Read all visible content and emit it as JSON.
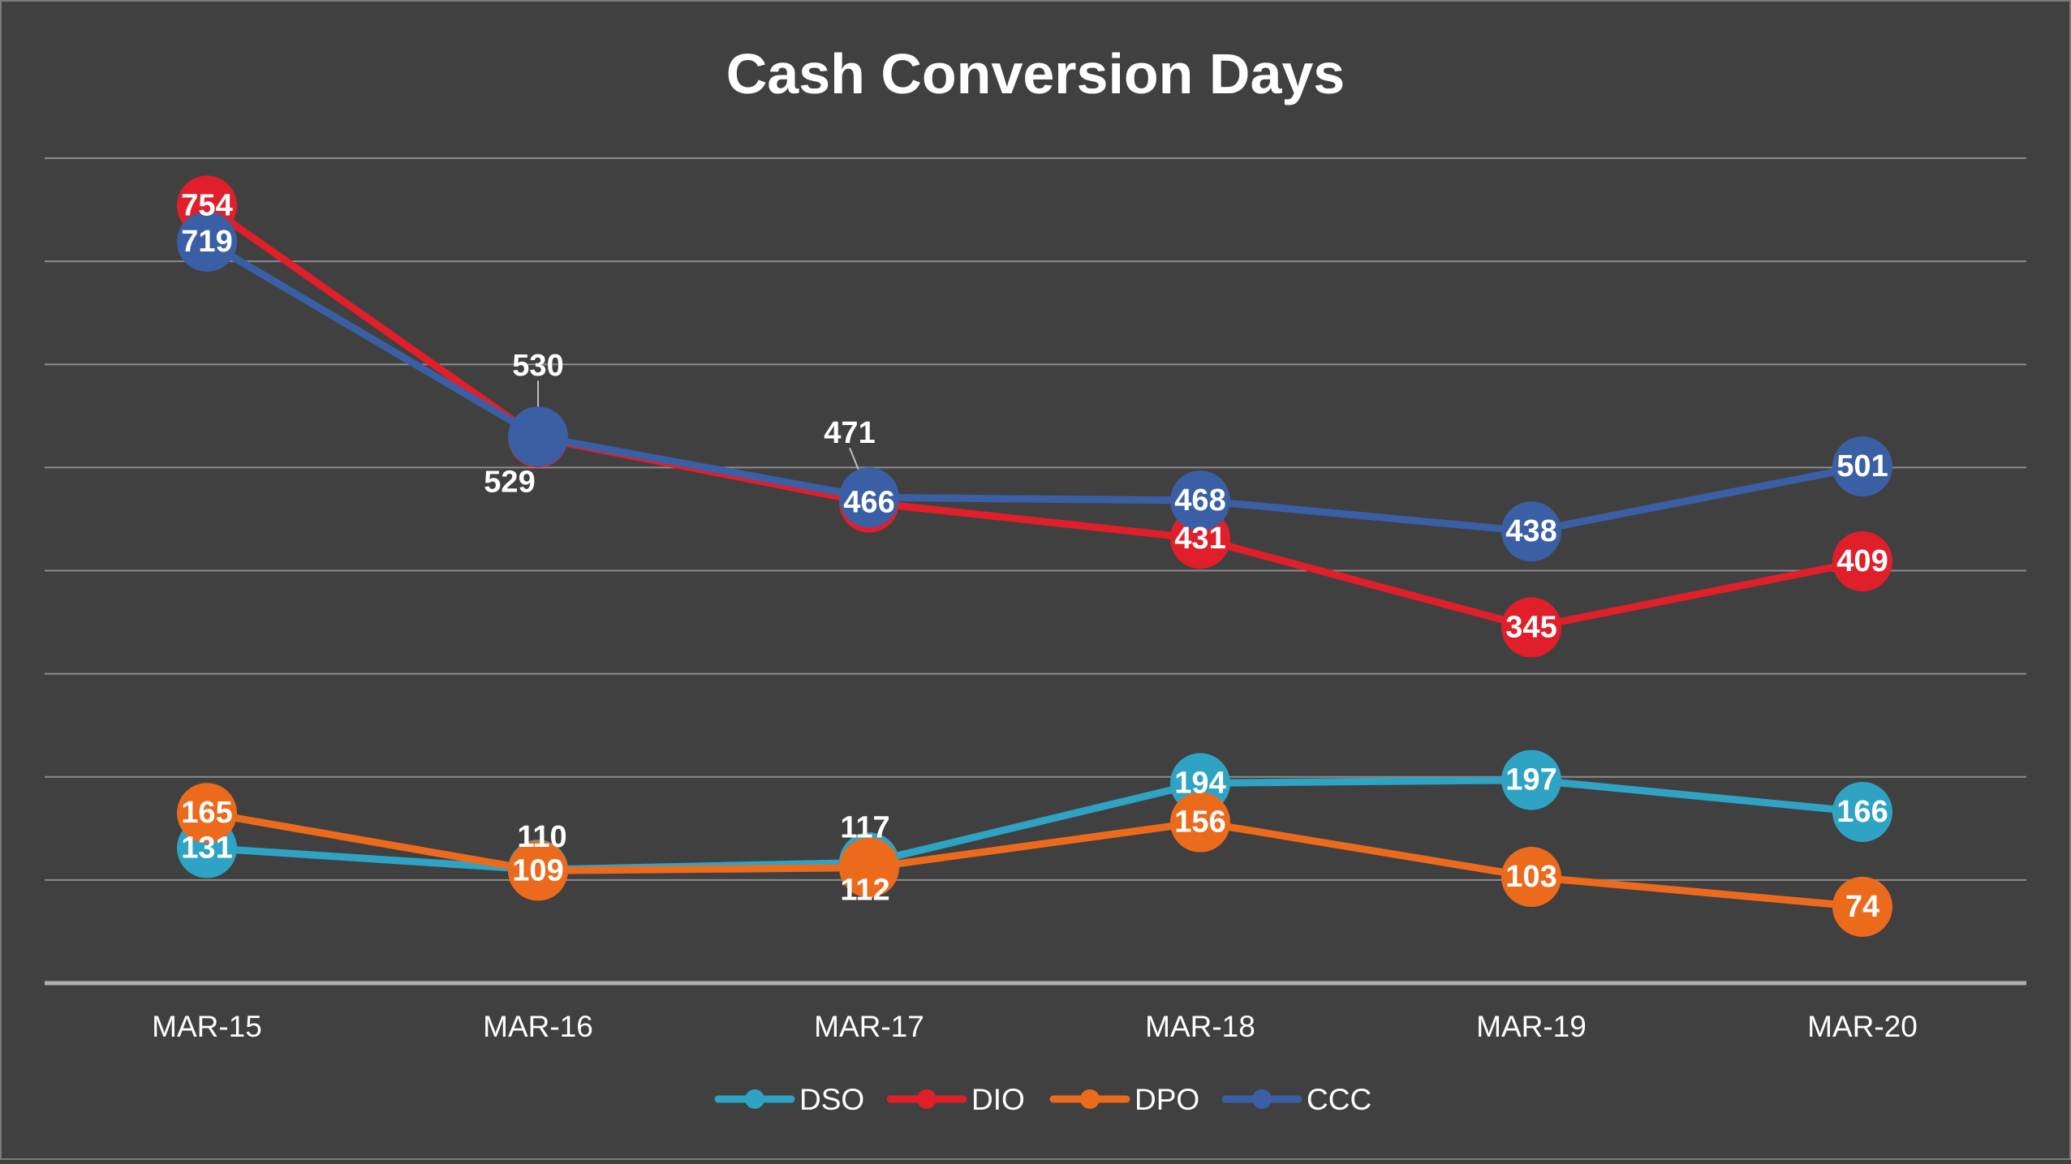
{
  "chart_data": {
    "type": "line",
    "title": "Cash Conversion Days",
    "xlabel": "",
    "ylabel": "",
    "categories": [
      "MAR-15",
      "MAR-16",
      "MAR-17",
      "MAR-18",
      "MAR-19",
      "MAR-20"
    ],
    "ylim": [
      0,
      800
    ],
    "grid": true,
    "legend_position": "bottom",
    "series": [
      {
        "name": "DSO",
        "color": "#2ea3c3",
        "values": [
          131,
          110,
          117,
          194,
          197,
          166
        ]
      },
      {
        "name": "DIO",
        "color": "#e01f2a",
        "values": [
          754,
          529,
          466,
          431,
          345,
          409
        ]
      },
      {
        "name": "DPO",
        "color": "#ec6a1c",
        "values": [
          165,
          109,
          112,
          156,
          103,
          74
        ]
      },
      {
        "name": "CCC",
        "color": "#3a5fa5",
        "values": [
          719,
          530,
          471,
          468,
          438,
          501
        ]
      }
    ],
    "data_labels": {
      "DSO": [
        "131",
        "110",
        "117",
        "194",
        "197",
        "166"
      ],
      "DIO": [
        "754",
        "529",
        "466",
        "431",
        "345",
        "409"
      ],
      "DPO": [
        "165",
        "109",
        "112",
        "156",
        "103",
        "74"
      ],
      "CCC": [
        "719",
        "530",
        "471",
        "468",
        "438",
        "501"
      ]
    }
  }
}
